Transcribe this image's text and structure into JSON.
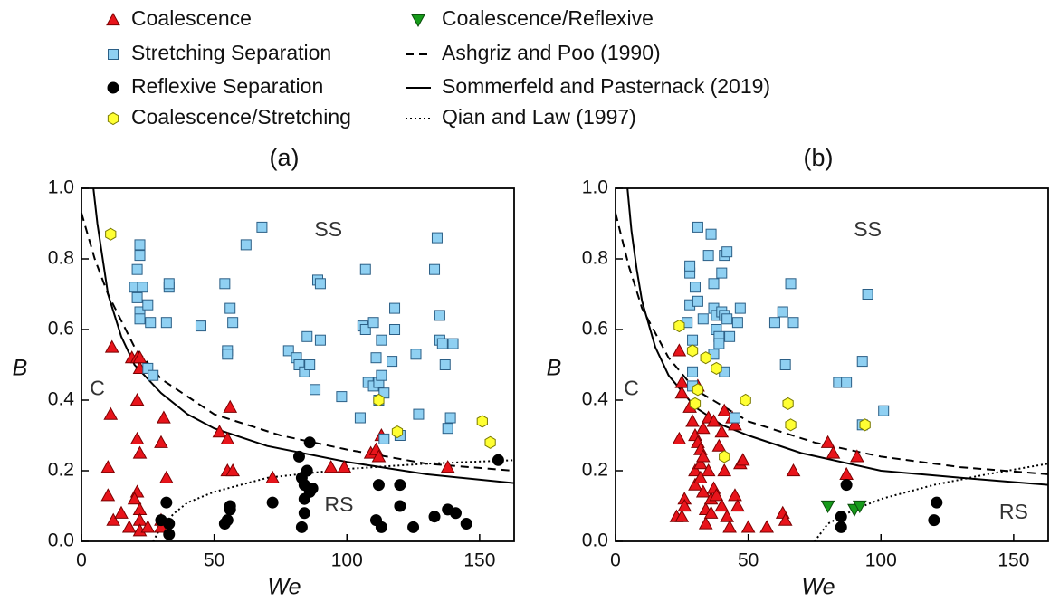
{
  "chart_data": [
    {
      "type": "scatter",
      "title": "(a)",
      "x_label": "We",
      "y_label": "B",
      "xlim": [
        0,
        163
      ],
      "ylim": [
        0,
        1.0
      ],
      "xticks": [
        0,
        50,
        100,
        150
      ],
      "yticks": [
        {
          "value": 0,
          "label": "0.0"
        },
        0.2,
        0.4,
        0.6,
        0.8,
        {
          "value": 1.0,
          "label": "1.0"
        }
      ],
      "annotations": [
        "SS",
        "C",
        "RS"
      ],
      "series": [
        {
          "name": "Coalescence",
          "color": "#e8141b",
          "marker": "triangle",
          "x": [
            11.5,
            11,
            10,
            10,
            12,
            15,
            18,
            19,
            21,
            22,
            21,
            21,
            22,
            21,
            20,
            22,
            22,
            22,
            25,
            30,
            31,
            32,
            30,
            52,
            55,
            56,
            55,
            57,
            72,
            94,
            99,
            109,
            111,
            112,
            113,
            138,
            22,
            30
          ],
          "values": [
            0.55,
            0.36,
            0.21,
            0.13,
            0.06,
            0.08,
            0.04,
            0.52,
            0.52,
            0.49,
            0.4,
            0.29,
            0.25,
            0.14,
            0.12,
            0.09,
            0.06,
            0.03,
            0.04,
            0.28,
            0.35,
            0.18,
            0.06,
            0.31,
            0.29,
            0.38,
            0.2,
            0.2,
            0.18,
            0.21,
            0.21,
            0.25,
            0.26,
            0.24,
            0.3,
            0.21,
            0.52,
            0.04
          ]
        },
        {
          "name": "Stretching Separation",
          "color": "#8fd0f2",
          "marker": "square",
          "x": [
            20,
            21,
            22,
            22,
            21,
            22,
            22,
            23,
            25,
            26,
            25,
            27,
            32,
            33,
            33,
            45,
            54,
            55,
            56,
            57,
            55,
            62,
            68,
            78,
            81,
            82,
            84,
            85,
            86,
            88,
            89,
            90,
            90,
            98,
            105,
            106,
            107,
            107,
            108,
            110,
            110,
            111,
            112,
            112,
            113,
            113,
            114,
            114,
            117,
            118,
            118,
            120,
            126,
            127,
            133,
            134,
            135,
            135,
            136,
            137,
            139,
            140,
            138
          ],
          "values": [
            0.72,
            0.77,
            0.84,
            0.81,
            0.69,
            0.65,
            0.63,
            0.72,
            0.67,
            0.62,
            0.49,
            0.47,
            0.62,
            0.72,
            0.73,
            0.61,
            0.73,
            0.54,
            0.66,
            0.62,
            0.53,
            0.84,
            0.89,
            0.54,
            0.52,
            0.5,
            0.48,
            0.58,
            0.5,
            0.43,
            0.74,
            0.73,
            0.57,
            0.41,
            0.35,
            0.61,
            0.77,
            0.6,
            0.45,
            0.44,
            0.62,
            0.52,
            0.45,
            0.4,
            0.57,
            0.47,
            0.42,
            0.29,
            0.51,
            0.66,
            0.6,
            0.3,
            0.53,
            0.36,
            0.77,
            0.86,
            0.64,
            0.57,
            0.56,
            0.5,
            0.35,
            0.56,
            0.32
          ]
        },
        {
          "name": "Reflexive Separation",
          "color": "#000000",
          "marker": "circle",
          "x": [
            30,
            32,
            33,
            33,
            54,
            55,
            56,
            56,
            72,
            82,
            83,
            83,
            84,
            84,
            84,
            85,
            86,
            86,
            87,
            111,
            112,
            113,
            120,
            120,
            125,
            133,
            138,
            141,
            145,
            157
          ],
          "values": [
            0.06,
            0.11,
            0.02,
            0.05,
            0.05,
            0.06,
            0.1,
            0.09,
            0.11,
            0.24,
            0.18,
            0.04,
            0.16,
            0.12,
            0.08,
            0.2,
            0.14,
            0.28,
            0.15,
            0.06,
            0.16,
            0.04,
            0.16,
            0.1,
            0.04,
            0.07,
            0.09,
            0.08,
            0.05,
            0.23
          ]
        },
        {
          "name": "Coalescence/Stretching",
          "color": "#ffff33",
          "marker": "hexagon",
          "x": [
            11,
            112,
            119,
            151,
            154
          ],
          "values": [
            0.87,
            0.4,
            0.31,
            0.34,
            0.28
          ]
        },
        {
          "name": "Ashgriz and Poo (1990)",
          "color": "#000000",
          "line": "dashed",
          "x": [
            0,
            5,
            10,
            20,
            30,
            50,
            75,
            100,
            130,
            163
          ],
          "values": [
            0.93,
            0.8,
            0.7,
            0.55,
            0.46,
            0.36,
            0.3,
            0.26,
            0.22,
            0.2
          ]
        },
        {
          "name": "Sommerfeld and Pasternack (2019)",
          "color": "#000000",
          "line": "solid",
          "x": [
            4.5,
            6,
            8,
            10,
            15,
            20,
            30,
            40,
            50,
            70,
            100,
            130,
            163
          ],
          "values": [
            1.0,
            0.9,
            0.8,
            0.7,
            0.58,
            0.5,
            0.42,
            0.36,
            0.32,
            0.27,
            0.225,
            0.19,
            0.165
          ]
        },
        {
          "name": "Qian and Law (1997)",
          "color": "#000000",
          "line": "dotted",
          "x": [
            27,
            30,
            35,
            40,
            50,
            70,
            100,
            130,
            163
          ],
          "values": [
            0,
            0.04,
            0.08,
            0.11,
            0.14,
            0.18,
            0.205,
            0.22,
            0.23
          ]
        }
      ]
    },
    {
      "type": "scatter",
      "title": "(b)",
      "x_label": "We",
      "y_label": "B",
      "xlim": [
        0,
        163
      ],
      "ylim": [
        0,
        1.0
      ],
      "xticks": [
        0,
        50,
        100,
        150
      ],
      "yticks": [
        {
          "value": 0,
          "label": "0.0"
        },
        0.2,
        0.4,
        0.6,
        0.8,
        {
          "value": 1.0,
          "label": "1.0"
        }
      ],
      "annotations": [
        "SS",
        "C",
        "RS"
      ],
      "series": [
        {
          "color": "#e8141b",
          "marker": "triangle",
          "x": [
            24,
            23,
            25,
            25,
            25,
            24,
            26,
            26,
            28,
            29,
            30,
            30,
            30,
            31,
            31,
            32,
            32,
            32,
            33,
            33,
            33,
            34,
            34,
            35,
            35,
            36,
            36,
            37,
            37,
            38,
            39,
            40,
            40,
            41,
            41,
            42,
            43,
            44,
            45,
            45,
            46,
            47,
            48,
            50,
            57,
            63,
            64,
            67,
            80,
            82,
            87,
            91
          ],
          "values": [
            0.54,
            0.07,
            0.07,
            0.45,
            0.42,
            0.29,
            0.12,
            0.1,
            0.38,
            0.34,
            0.3,
            0.2,
            0.16,
            0.44,
            0.28,
            0.26,
            0.22,
            0.18,
            0.32,
            0.24,
            0.14,
            0.09,
            0.05,
            0.35,
            0.2,
            0.12,
            0.08,
            0.34,
            0.15,
            0.13,
            0.27,
            0.31,
            0.1,
            0.37,
            0.2,
            0.07,
            0.04,
            0.35,
            0.33,
            0.13,
            0.1,
            0.22,
            0.23,
            0.04,
            0.04,
            0.08,
            0.06,
            0.2,
            0.28,
            0.25,
            0.19,
            0.24
          ]
        },
        {
          "color": "#8fd0f2",
          "marker": "square",
          "x": [
            27,
            28,
            28,
            28,
            29,
            29,
            29,
            30,
            31,
            31,
            33,
            35,
            36,
            37,
            37,
            37,
            38,
            38,
            39,
            39,
            40,
            40,
            41,
            41,
            41,
            42,
            42,
            43,
            45,
            46,
            47,
            60,
            63,
            64,
            66,
            67,
            84,
            87,
            93,
            95,
            101,
            93
          ],
          "values": [
            0.62,
            0.76,
            0.78,
            0.67,
            0.57,
            0.48,
            0.44,
            0.72,
            0.68,
            0.89,
            0.63,
            0.81,
            0.87,
            0.73,
            0.66,
            0.53,
            0.64,
            0.6,
            0.58,
            0.56,
            0.65,
            0.76,
            0.81,
            0.64,
            0.48,
            0.82,
            0.63,
            0.58,
            0.35,
            0.62,
            0.66,
            0.62,
            0.65,
            0.5,
            0.73,
            0.62,
            0.45,
            0.45,
            0.51,
            0.7,
            0.37,
            0.33
          ]
        },
        {
          "color": "#000000",
          "marker": "circle",
          "x": [
            85,
            85,
            87,
            121,
            120
          ],
          "values": [
            0.07,
            0.04,
            0.16,
            0.11,
            0.06
          ]
        },
        {
          "color": "#ffff33",
          "marker": "hexagon",
          "x": [
            24,
            29,
            30,
            31,
            34,
            38,
            41,
            49,
            65,
            66,
            94
          ],
          "values": [
            0.61,
            0.54,
            0.39,
            0.43,
            0.52,
            0.49,
            0.24,
            0.4,
            0.39,
            0.33,
            0.33
          ]
        },
        {
          "name": "Coalescence/Reflexive",
          "color": "#169b1a",
          "marker": "downtriangle",
          "x": [
            80,
            90,
            92
          ],
          "values": [
            0.1,
            0.09,
            0.1
          ]
        },
        {
          "color": "#000000",
          "line": "dashed",
          "x": [
            0,
            5,
            10,
            20,
            30,
            50,
            75,
            100,
            130,
            163
          ],
          "values": [
            0.93,
            0.78,
            0.66,
            0.52,
            0.43,
            0.34,
            0.28,
            0.24,
            0.21,
            0.19
          ]
        },
        {
          "color": "#000000",
          "line": "solid",
          "x": [
            4.5,
            6,
            8,
            10,
            15,
            20,
            30,
            40,
            50,
            70,
            100,
            130,
            163
          ],
          "values": [
            1.0,
            0.88,
            0.77,
            0.68,
            0.55,
            0.47,
            0.38,
            0.33,
            0.3,
            0.25,
            0.2,
            0.18,
            0.16
          ]
        },
        {
          "color": "#000000",
          "line": "dotted",
          "x": [
            75,
            80,
            90,
            100,
            120,
            140,
            163
          ],
          "values": [
            0,
            0.05,
            0.09,
            0.12,
            0.16,
            0.19,
            0.22
          ]
        }
      ]
    }
  ]
}
